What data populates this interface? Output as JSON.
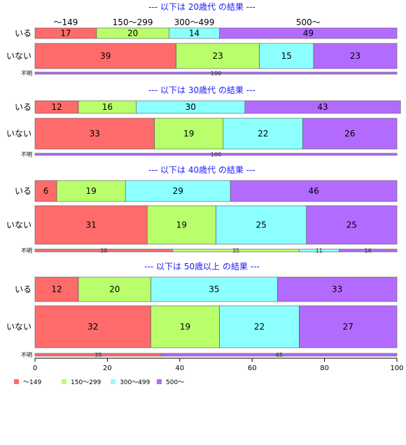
{
  "chart_data": {
    "type": "bar",
    "orientation": "horizontal",
    "stacked": "percent",
    "categories": [
      "～149",
      "150～299",
      "300～499",
      "500～"
    ],
    "colors": [
      "#ff6b6b",
      "#b8ff6b",
      "#8cffff",
      "#b36bff"
    ],
    "xlim": [
      0,
      100
    ],
    "x_ticks": [
      "0",
      "20",
      "40",
      "60",
      "80",
      "100"
    ],
    "legend": {
      "position": "bottom-left",
      "entries": [
        "～149",
        "150～299",
        "300～499",
        "500～"
      ]
    },
    "panels": [
      {
        "title": "--- 以下は 20歳代 の結果 ---",
        "rows": [
          {
            "label": "いる",
            "values": [
              17,
              20,
              14,
              49
            ]
          },
          {
            "label": "いない",
            "values": [
              39,
              23,
              15,
              23
            ]
          },
          {
            "label": "不明",
            "values": [
              0,
              0,
              0,
              100
            ]
          }
        ]
      },
      {
        "title": "--- 以下は 30歳代 の結果 ---",
        "rows": [
          {
            "label": "いる",
            "values": [
              12,
              16,
              30,
              43
            ]
          },
          {
            "label": "いない",
            "values": [
              33,
              19,
              22,
              26
            ]
          },
          {
            "label": "不明",
            "values": [
              0,
              0,
              0,
              100
            ]
          }
        ]
      },
      {
        "title": "--- 以下は 40歳代 の結果 ---",
        "rows": [
          {
            "label": "いる",
            "values": [
              6,
              19,
              29,
              46
            ]
          },
          {
            "label": "いない",
            "values": [
              31,
              19,
              25,
              25
            ]
          },
          {
            "label": "不明",
            "values": [
              38,
              35,
              11,
              16
            ]
          }
        ]
      },
      {
        "title": "--- 以下は 50歳以上 の結果 ---",
        "rows": [
          {
            "label": "いる",
            "values": [
              12,
              20,
              35,
              33
            ]
          },
          {
            "label": "いない",
            "values": [
              32,
              19,
              22,
              27
            ]
          },
          {
            "label": "不明",
            "values": [
              35,
              0,
              0,
              65
            ]
          }
        ]
      }
    ]
  }
}
